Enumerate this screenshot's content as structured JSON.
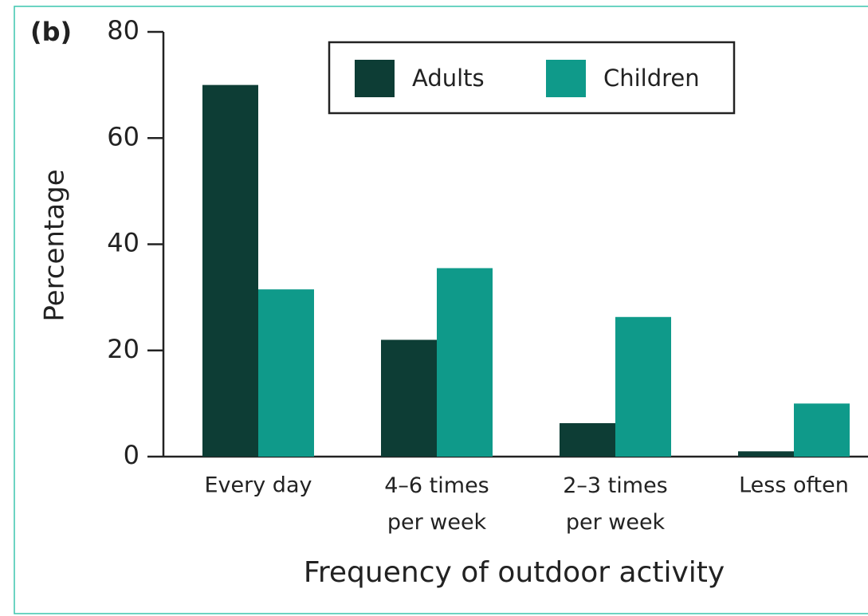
{
  "chart_data": {
    "type": "bar",
    "panel_label": "(b)",
    "xlabel": "Frequency of outdoor activity",
    "ylabel": "Percentage",
    "categories": [
      "Every day",
      "4–6 times per week",
      "2–3 times per week",
      "Less often"
    ],
    "series": [
      {
        "name": "Adults",
        "color": "#0d3d35",
        "values": [
          70,
          22,
          6.3,
          1
        ]
      },
      {
        "name": "Children",
        "color": "#0f9a8a",
        "values": [
          31.5,
          35.5,
          26.3,
          10
        ]
      }
    ],
    "ylim": [
      0,
      80
    ],
    "yticks": [
      0,
      20,
      40,
      60,
      80
    ],
    "legend": "top"
  }
}
